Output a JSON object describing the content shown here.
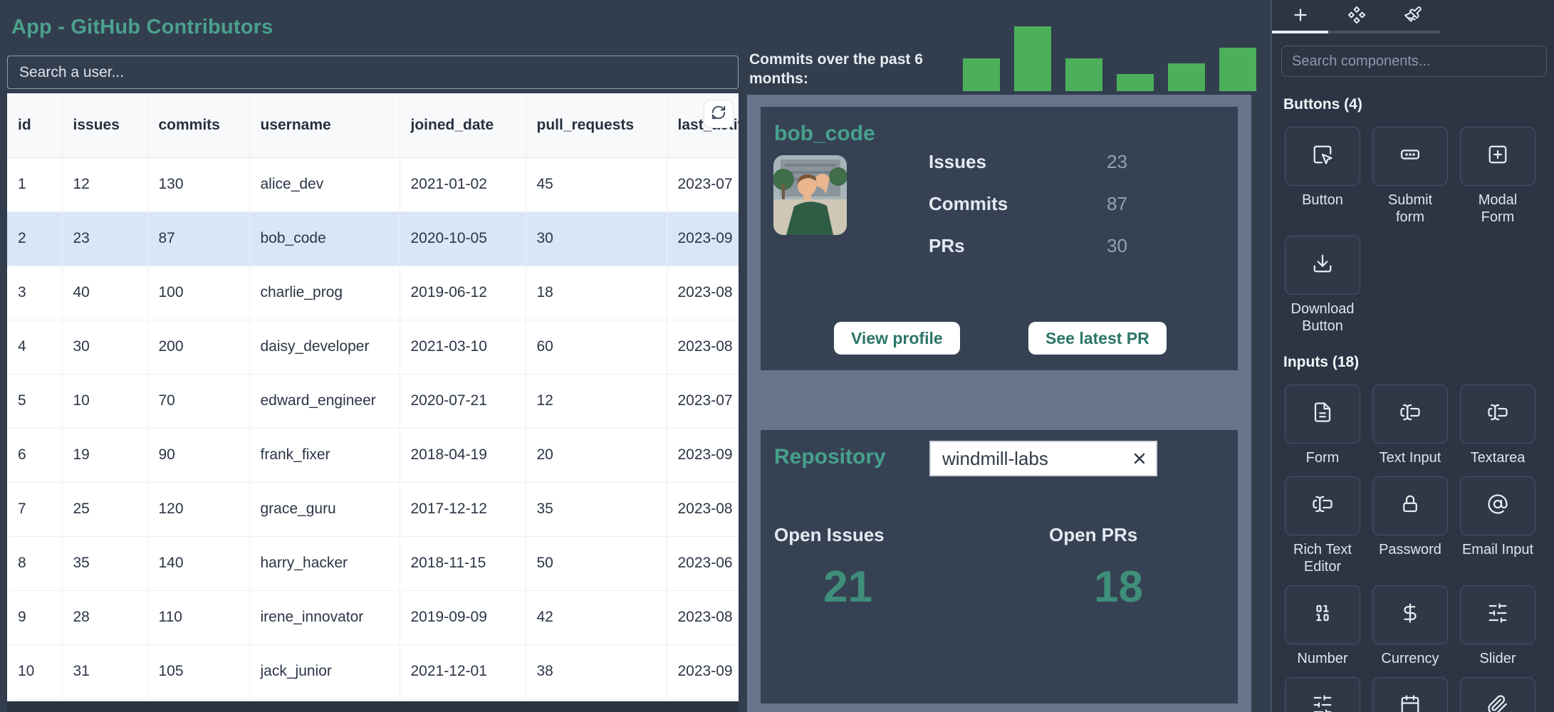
{
  "app": {
    "title": "App - GitHub Contributors"
  },
  "colors": {
    "accent_teal": "#4BA18C",
    "metric_teal": "#3E8E7A",
    "button_text_teal": "#2B7668",
    "bar_green": "#4CB05B",
    "selected_row_blue": "#D9E6F8",
    "panel_slate": "#67748B",
    "card_navy": "#364254",
    "page_navy": "#323E4E"
  },
  "search": {
    "placeholder": "Search a user..."
  },
  "table": {
    "columns": [
      "id",
      "issues",
      "commits",
      "username",
      "joined_date",
      "pull_requests",
      "last_active"
    ],
    "selected_row_index": 1,
    "rows": [
      [
        "1",
        "12",
        "130",
        "alice_dev",
        "2021-01-02",
        "45",
        "2023-07"
      ],
      [
        "2",
        "23",
        "87",
        "bob_code",
        "2020-10-05",
        "30",
        "2023-09"
      ],
      [
        "3",
        "40",
        "100",
        "charlie_prog",
        "2019-06-12",
        "18",
        "2023-08"
      ],
      [
        "4",
        "30",
        "200",
        "daisy_developer",
        "2021-03-10",
        "60",
        "2023-08"
      ],
      [
        "5",
        "10",
        "70",
        "edward_engineer",
        "2020-07-21",
        "12",
        "2023-07"
      ],
      [
        "6",
        "19",
        "90",
        "frank_fixer",
        "2018-04-19",
        "20",
        "2023-09"
      ],
      [
        "7",
        "25",
        "120",
        "grace_guru",
        "2017-12-12",
        "35",
        "2023-08"
      ],
      [
        "8",
        "35",
        "140",
        "harry_hacker",
        "2018-11-15",
        "50",
        "2023-06"
      ],
      [
        "9",
        "28",
        "110",
        "irene_innovator",
        "2019-09-09",
        "42",
        "2023-08"
      ],
      [
        "10",
        "31",
        "105",
        "jack_junior",
        "2021-12-01",
        "38",
        "2023-09"
      ]
    ]
  },
  "chart_data": {
    "type": "bar",
    "title": "Commits over the past 6 months:",
    "categories": [
      "",
      "",
      "",
      "",
      "",
      ""
    ],
    "values": [
      50,
      100,
      50,
      26,
      43,
      67
    ],
    "ylim": [
      0,
      100
    ],
    "xlabel": "",
    "ylabel": "",
    "grid": false,
    "legend": false,
    "color": "#4CB05B",
    "note": "unlabeled mini bar chart; values estimated from relative bar heights"
  },
  "user_card": {
    "username": "bob_code",
    "stats": [
      {
        "label": "Issues",
        "value": "23"
      },
      {
        "label": "Commits",
        "value": "87"
      },
      {
        "label": "PRs",
        "value": "30"
      }
    ],
    "view_profile_label": "View profile",
    "see_latest_pr_label": "See latest PR"
  },
  "repo_card": {
    "title": "Repository",
    "input_value": "windmill-labs",
    "open_issues_label": "Open Issues",
    "open_issues_value": "21",
    "open_prs_label": "Open PRs",
    "open_prs_value": "18"
  },
  "sidebar": {
    "search_placeholder": "Search components...",
    "tabs": [
      "add-component",
      "components",
      "style"
    ],
    "sections": [
      {
        "title": "Buttons (4)",
        "items": [
          {
            "label": "Button",
            "icon": "square-mouse-pointer-icon"
          },
          {
            "label": "Submit form",
            "icon": "button-ellipsis-icon"
          },
          {
            "label": "Modal Form",
            "icon": "square-plus-icon"
          },
          {
            "label": "Download Button",
            "icon": "download-icon"
          }
        ]
      },
      {
        "title": "Inputs (18)",
        "items": [
          {
            "label": "Form",
            "icon": "file-text-icon"
          },
          {
            "label": "Text Input",
            "icon": "text-cursor-input-icon"
          },
          {
            "label": "Textarea",
            "icon": "text-cursor-input-icon"
          },
          {
            "label": "Rich Text Editor",
            "icon": "text-cursor-input-icon"
          },
          {
            "label": "Password",
            "icon": "lock-icon"
          },
          {
            "label": "Email Input",
            "icon": "at-sign-icon"
          },
          {
            "label": "Number",
            "icon": "binary-icon"
          },
          {
            "label": "Currency",
            "icon": "dollar-sign-icon"
          },
          {
            "label": "Slider",
            "icon": "sliders-icon"
          }
        ]
      }
    ],
    "partial_row_icons": [
      "sliders-icon",
      "calendar-icon",
      "paperclip-icon"
    ]
  }
}
